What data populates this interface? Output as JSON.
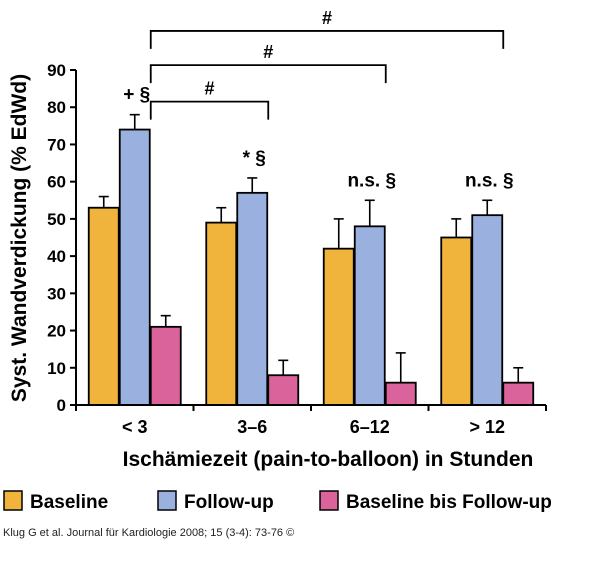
{
  "chart_data": {
    "type": "bar",
    "ylabel": "Syst. Wandverdickung (% EdWd)",
    "xlabel": "Ischämiezeit (pain-to-balloon) in Stunden",
    "ylim": [
      0,
      90
    ],
    "yticks": [
      0,
      10,
      20,
      30,
      40,
      50,
      60,
      70,
      80,
      90
    ],
    "categories": [
      "< 3",
      "3–6",
      "6–12",
      "> 12"
    ],
    "series": [
      {
        "name": "Baseline",
        "color": "#F0B43C",
        "values": [
          53,
          49,
          42,
          45
        ],
        "errors": [
          3,
          4,
          8,
          5
        ]
      },
      {
        "name": "Follow-up",
        "color": "#9AB0DE",
        "values": [
          74,
          57,
          48,
          51
        ],
        "errors": [
          4,
          4,
          7,
          4
        ]
      },
      {
        "name": "Baseline bis Follow-up",
        "color": "#D9639A",
        "values": [
          21,
          8,
          6,
          6
        ],
        "errors": [
          3,
          4,
          8,
          4
        ]
      }
    ],
    "group_annotations": [
      "+ §",
      "* §",
      "n.s. §",
      "n.s. §"
    ],
    "comparison_brackets": [
      {
        "from_category": "< 3",
        "to_category": "3–6",
        "label": "#"
      },
      {
        "from_category": "< 3",
        "to_category": "6–12",
        "label": "#"
      },
      {
        "from_category": "< 3",
        "to_category": "> 12",
        "label": "#"
      }
    ],
    "legend_position": "bottom"
  },
  "citation": "Klug G et al. Journal für Kardiologie 2008; 15 (3-4): 73-76 ©"
}
